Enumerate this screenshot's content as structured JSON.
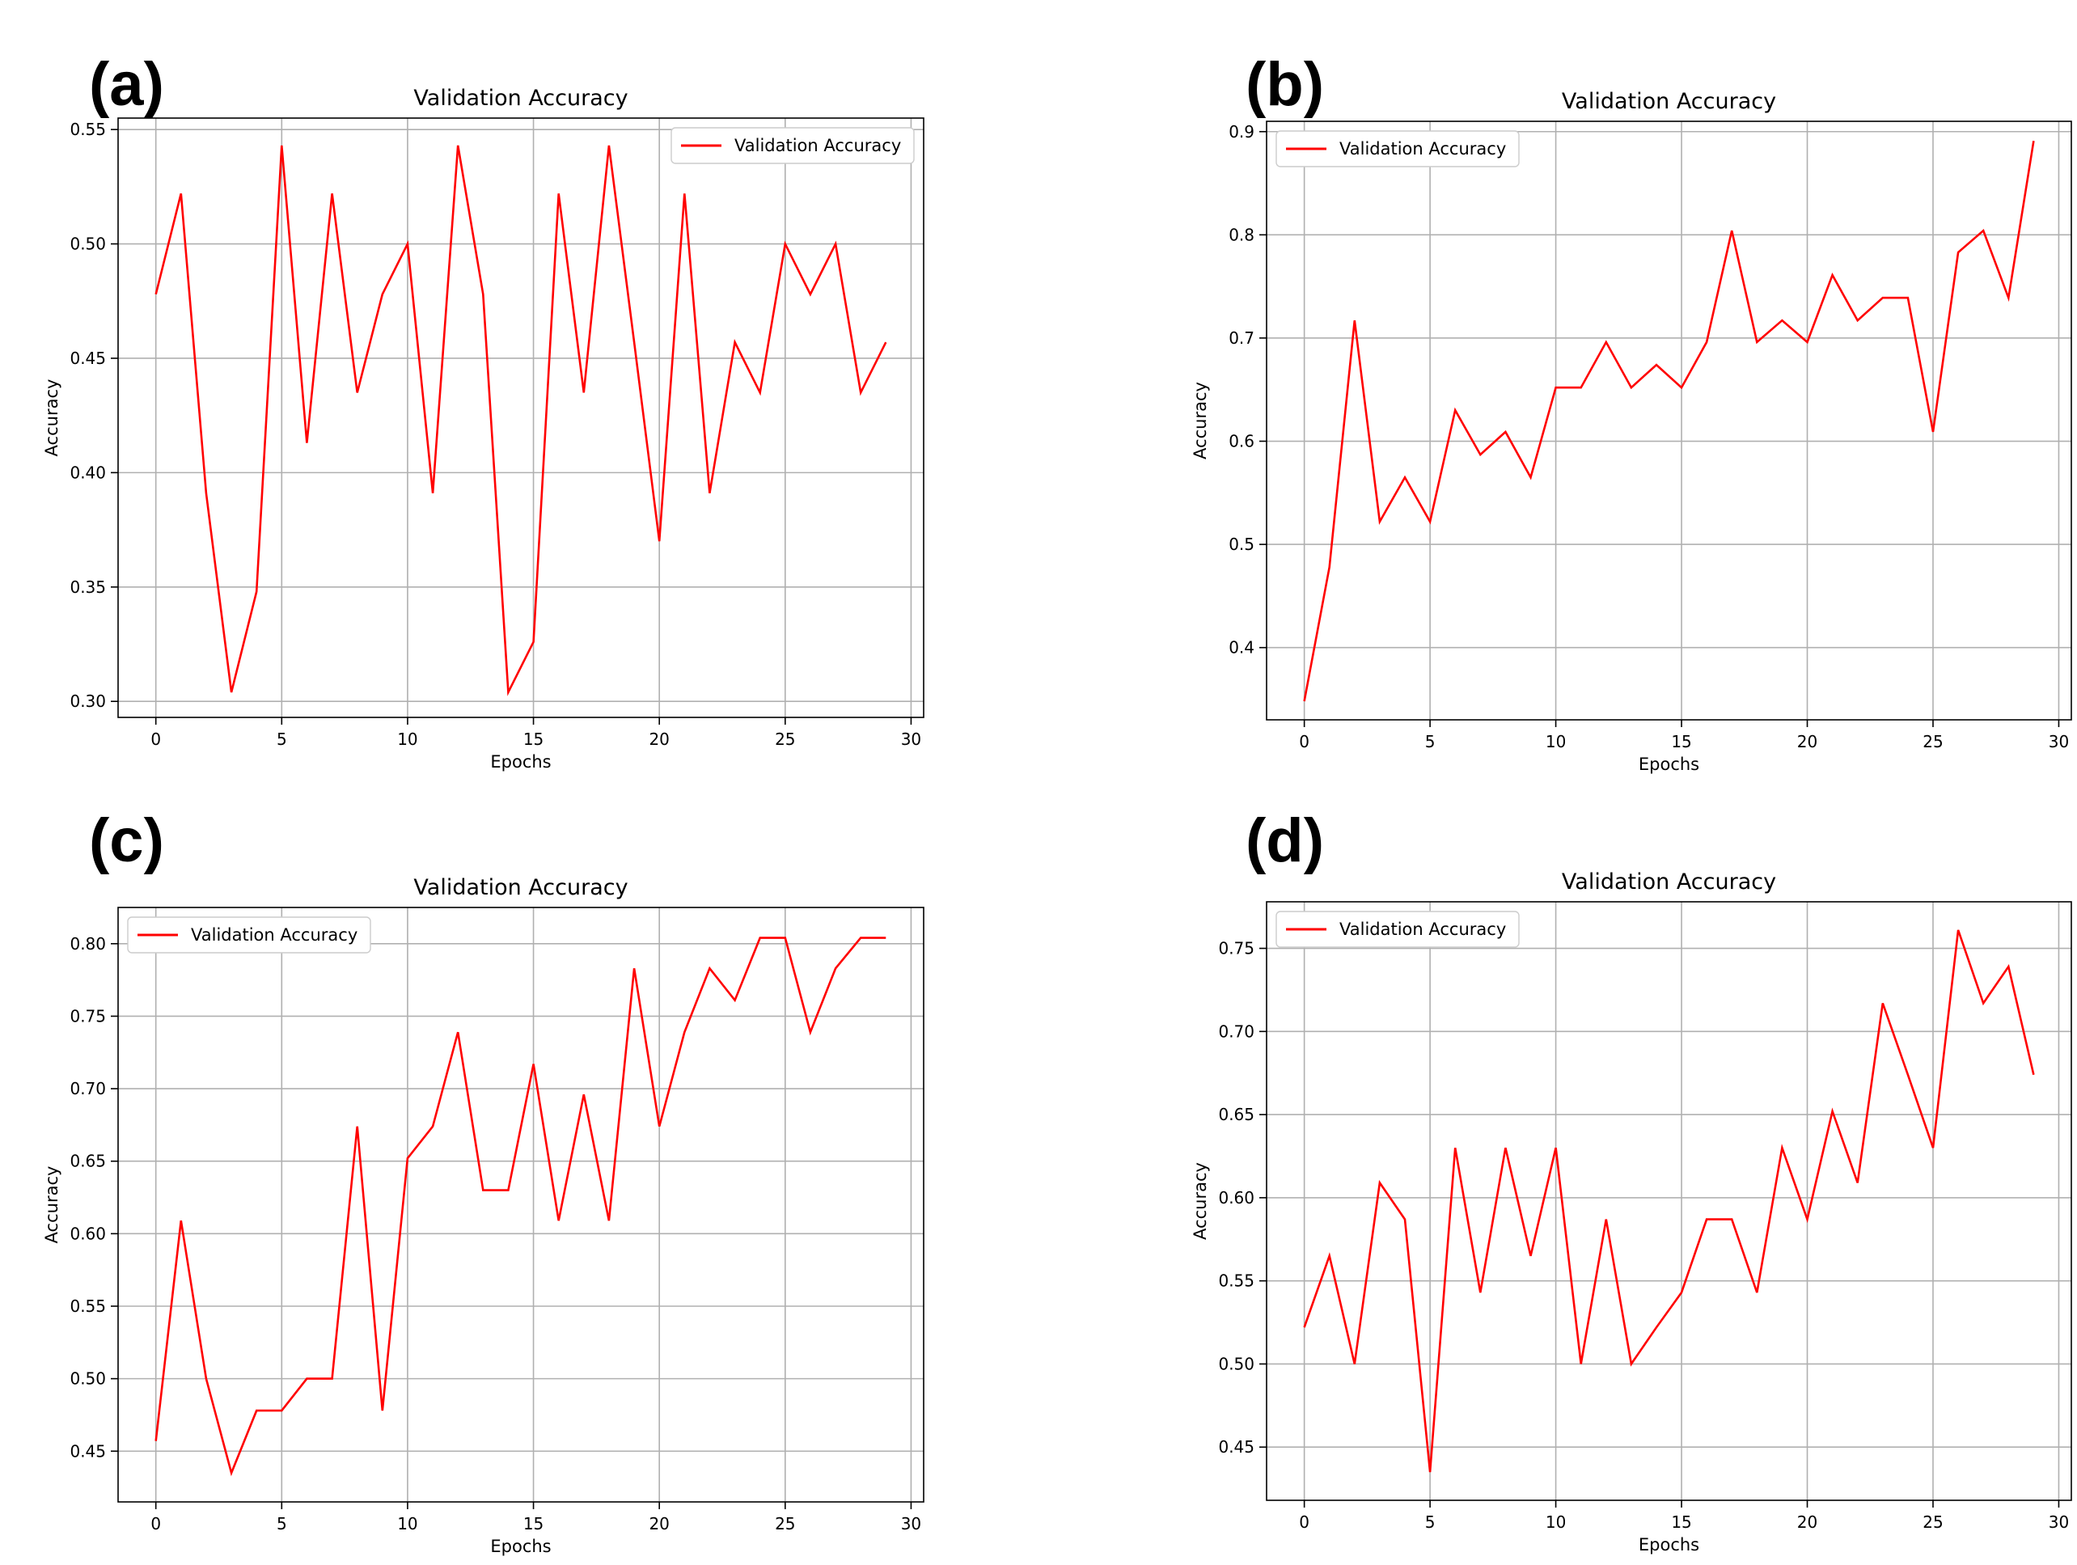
{
  "chart_data": [
    {
      "panel": "(a)",
      "type": "line",
      "title": "Validation Accuracy",
      "xlabel": "Epochs",
      "ylabel": "Accuracy",
      "xlim": [
        -1.5,
        30.5
      ],
      "ylim": [
        0.293,
        0.555
      ],
      "xticks": [
        0,
        5,
        10,
        15,
        20,
        25,
        30
      ],
      "yticks": [
        0.3,
        0.35,
        0.4,
        0.45,
        0.5,
        0.55
      ],
      "ytick_labels": [
        "0.30",
        "0.35",
        "0.40",
        "0.45",
        "0.50",
        "0.55"
      ],
      "legend": "top-right",
      "series": [
        {
          "name": "Validation Accuracy",
          "color": "#ff0000",
          "x": [
            0,
            1,
            2,
            3,
            4,
            5,
            6,
            7,
            8,
            9,
            10,
            11,
            12,
            13,
            14,
            15,
            16,
            17,
            18,
            19,
            20,
            21,
            22,
            23,
            24,
            25,
            26,
            27,
            28,
            29
          ],
          "values": [
            0.478,
            0.522,
            0.391,
            0.304,
            0.348,
            0.543,
            0.413,
            0.522,
            0.435,
            0.478,
            0.5,
            0.391,
            0.543,
            0.478,
            0.304,
            0.326,
            0.522,
            0.435,
            0.543,
            0.457,
            0.37,
            0.522,
            0.391,
            0.457,
            0.435,
            0.5,
            0.478,
            0.5,
            0.435,
            0.457
          ]
        }
      ]
    },
    {
      "panel": "(b)",
      "type": "line",
      "title": "Validation Accuracy",
      "xlabel": "Epochs",
      "ylabel": "Accuracy",
      "xlim": [
        -1.5,
        30.5
      ],
      "ylim": [
        0.33,
        0.91
      ],
      "xticks": [
        0,
        5,
        10,
        15,
        20,
        25,
        30
      ],
      "yticks": [
        0.4,
        0.5,
        0.6,
        0.7,
        0.8,
        0.9
      ],
      "ytick_labels": [
        "0.4",
        "0.5",
        "0.6",
        "0.7",
        "0.8",
        "0.9"
      ],
      "legend": "top-left",
      "series": [
        {
          "name": "Validation Accuracy",
          "color": "#ff0000",
          "x": [
            0,
            1,
            2,
            3,
            4,
            5,
            6,
            7,
            8,
            9,
            10,
            11,
            12,
            13,
            14,
            15,
            16,
            17,
            18,
            19,
            20,
            21,
            22,
            23,
            24,
            25,
            26,
            27,
            28,
            29
          ],
          "values": [
            0.348,
            0.478,
            0.717,
            0.522,
            0.565,
            0.522,
            0.63,
            0.587,
            0.609,
            0.565,
            0.652,
            0.652,
            0.696,
            0.652,
            0.674,
            0.652,
            0.696,
            0.804,
            0.696,
            0.717,
            0.696,
            0.761,
            0.717,
            0.739,
            0.739,
            0.609,
            0.783,
            0.804,
            0.739,
            0.891
          ]
        }
      ]
    },
    {
      "panel": "(c)",
      "type": "line",
      "title": "Validation Accuracy",
      "xlabel": "Epochs",
      "ylabel": "Accuracy",
      "xlim": [
        -1.5,
        30.5
      ],
      "ylim": [
        0.415,
        0.825
      ],
      "xticks": [
        0,
        5,
        10,
        15,
        20,
        25,
        30
      ],
      "yticks": [
        0.45,
        0.5,
        0.55,
        0.6,
        0.65,
        0.7,
        0.75,
        0.8
      ],
      "ytick_labels": [
        "0.45",
        "0.50",
        "0.55",
        "0.60",
        "0.65",
        "0.70",
        "0.75",
        "0.80"
      ],
      "legend": "top-left",
      "series": [
        {
          "name": "Validation Accuracy",
          "color": "#ff0000",
          "x": [
            0,
            1,
            2,
            3,
            4,
            5,
            6,
            7,
            8,
            9,
            10,
            11,
            12,
            13,
            14,
            15,
            16,
            17,
            18,
            19,
            20,
            21,
            22,
            23,
            24,
            25,
            26,
            27,
            28,
            29
          ],
          "values": [
            0.457,
            0.609,
            0.5,
            0.435,
            0.478,
            0.478,
            0.5,
            0.5,
            0.674,
            0.478,
            0.652,
            0.674,
            0.739,
            0.63,
            0.63,
            0.717,
            0.609,
            0.696,
            0.609,
            0.783,
            0.674,
            0.739,
            0.783,
            0.761,
            0.804,
            0.804,
            0.739,
            0.783,
            0.804,
            0.804
          ]
        }
      ]
    },
    {
      "panel": "(d)",
      "type": "line",
      "title": "Validation Accuracy",
      "xlabel": "Epochs",
      "ylabel": "Accuracy",
      "xlim": [
        -1.5,
        30.5
      ],
      "ylim": [
        0.418,
        0.778
      ],
      "xticks": [
        0,
        5,
        10,
        15,
        20,
        25,
        30
      ],
      "yticks": [
        0.45,
        0.5,
        0.55,
        0.6,
        0.65,
        0.7,
        0.75
      ],
      "ytick_labels": [
        "0.45",
        "0.50",
        "0.55",
        "0.60",
        "0.65",
        "0.70",
        "0.75"
      ],
      "legend": "top-left",
      "series": [
        {
          "name": "Validation Accuracy",
          "color": "#ff0000",
          "x": [
            0,
            1,
            2,
            3,
            4,
            5,
            6,
            7,
            8,
            9,
            10,
            11,
            12,
            13,
            14,
            15,
            16,
            17,
            18,
            19,
            20,
            21,
            22,
            23,
            24,
            25,
            26,
            27,
            28,
            29
          ],
          "values": [
            0.522,
            0.565,
            0.5,
            0.609,
            0.587,
            0.435,
            0.63,
            0.543,
            0.63,
            0.565,
            0.63,
            0.5,
            0.587,
            0.5,
            0.522,
            0.543,
            0.587,
            0.587,
            0.543,
            0.63,
            0.587,
            0.652,
            0.609,
            0.717,
            0.674,
            0.63,
            0.761,
            0.717,
            0.739,
            0.674
          ]
        }
      ]
    }
  ]
}
